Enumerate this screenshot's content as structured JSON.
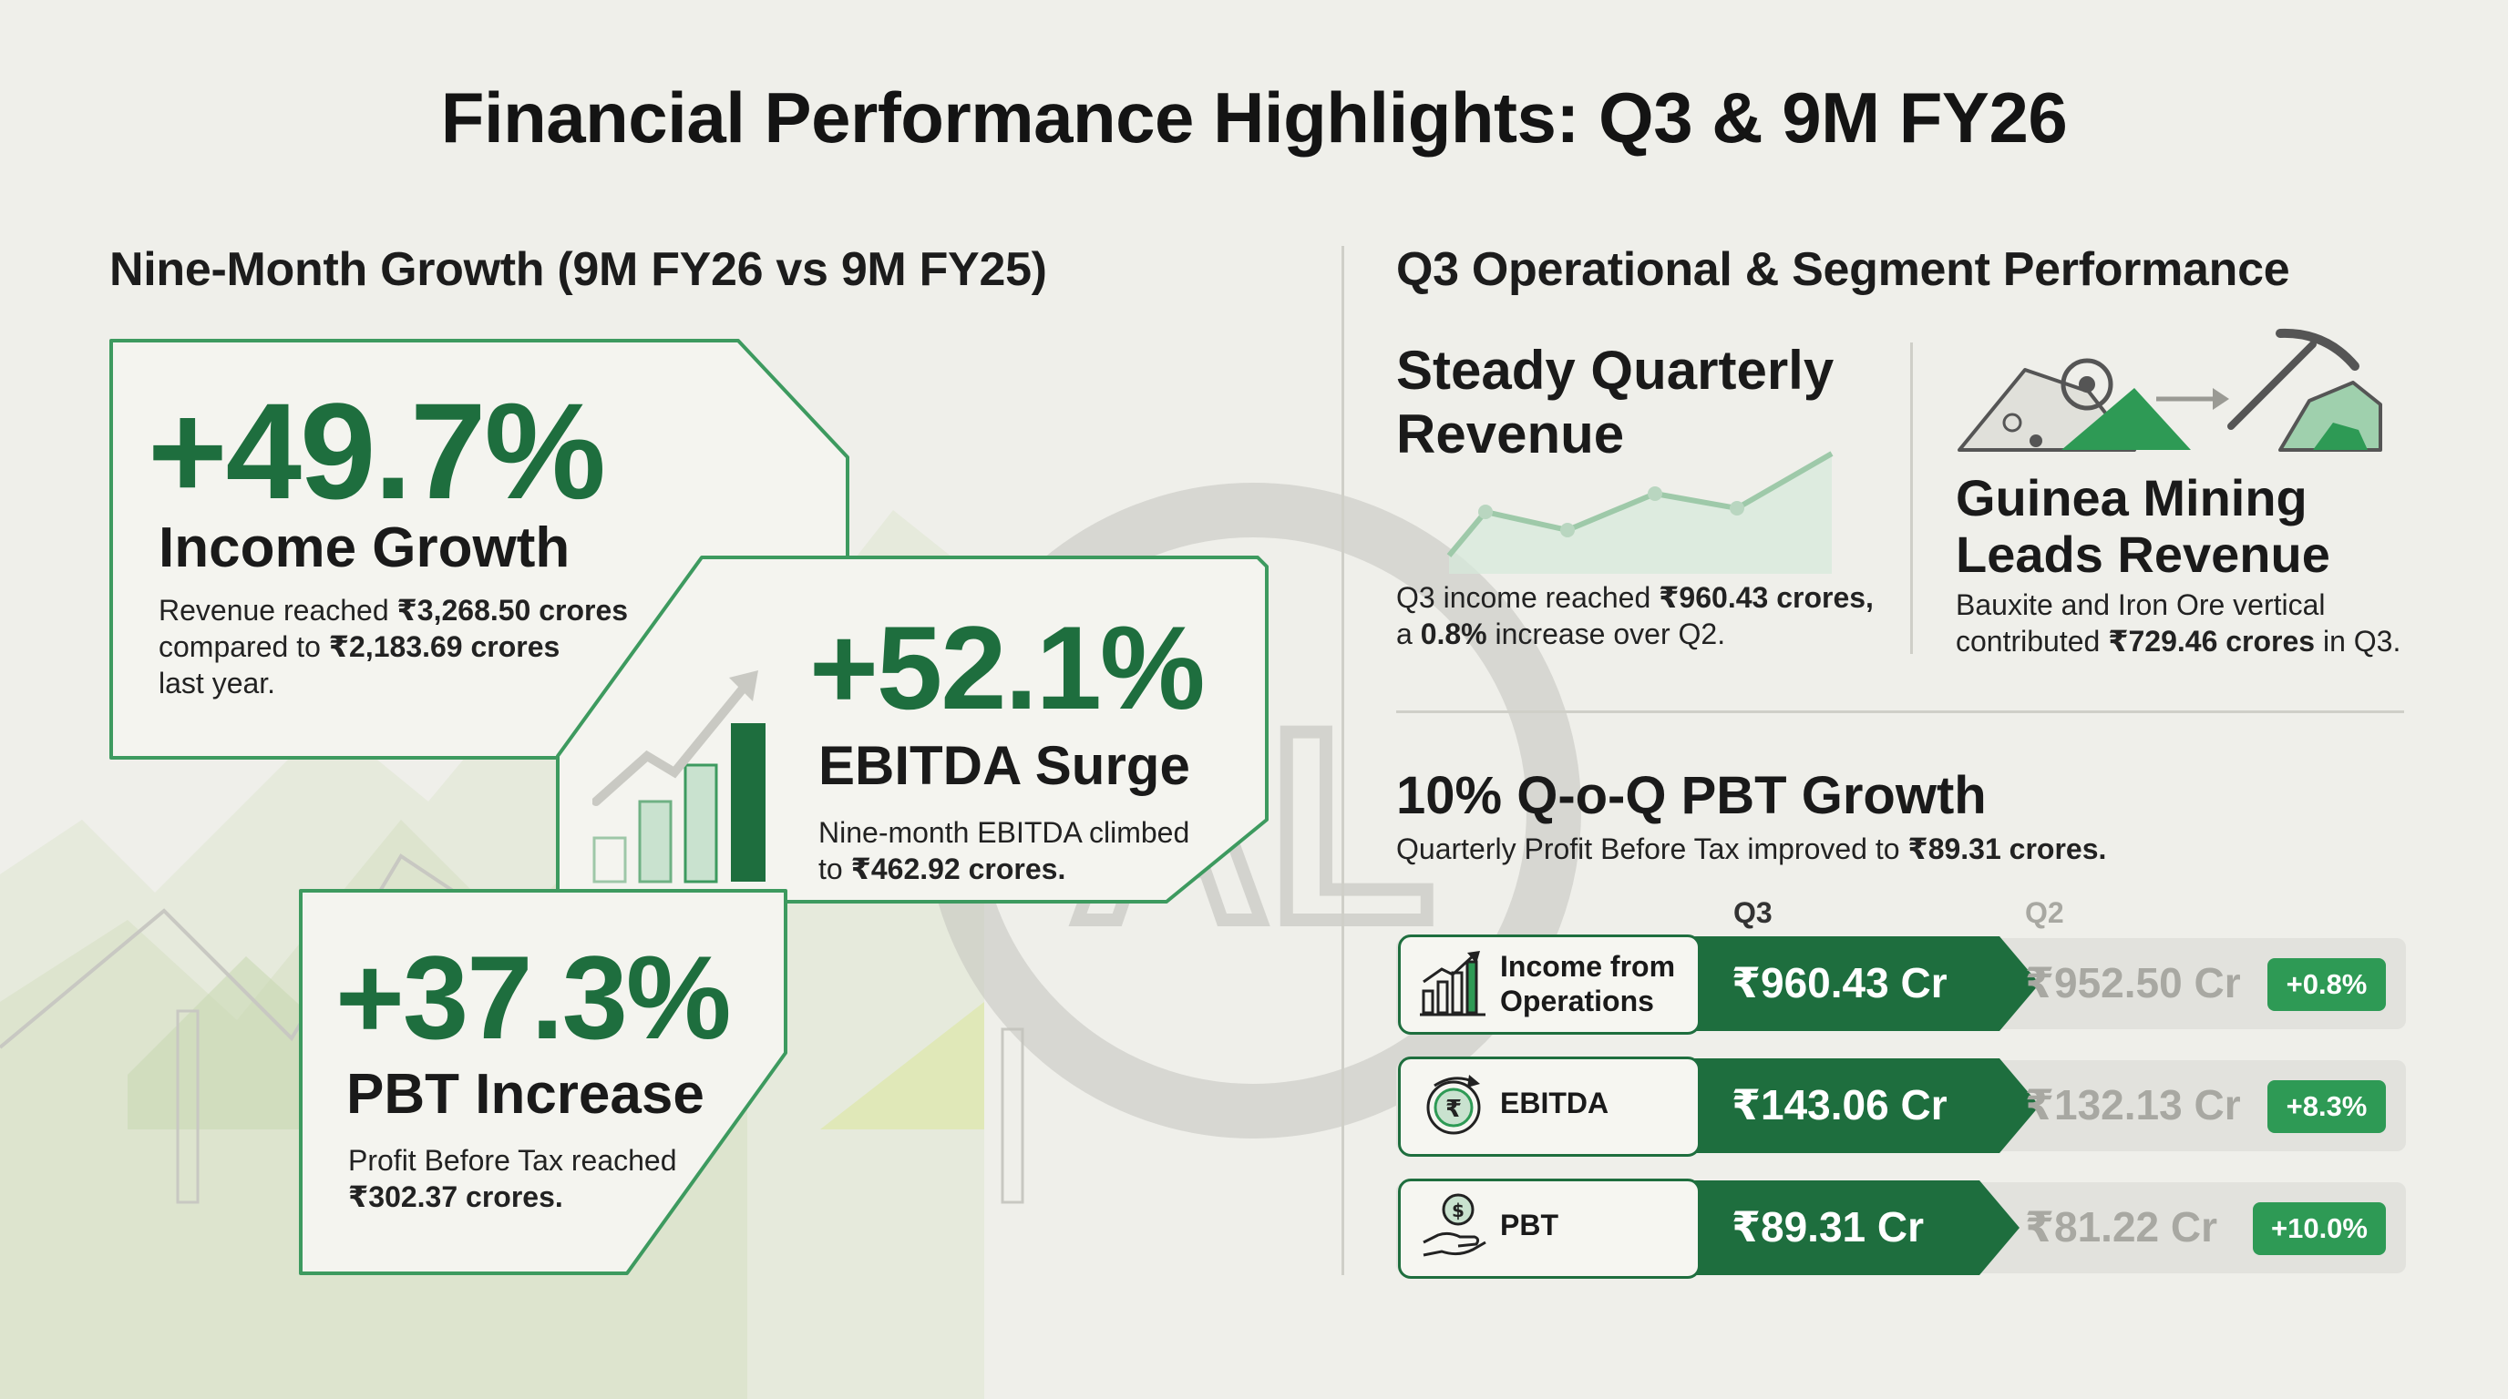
{
  "title": "Financial Performance Highlights: Q3 & 9M FY26",
  "left": {
    "heading": "Nine-Month Growth (9M FY26 vs 9M FY25)",
    "income": {
      "value": "+49.7%",
      "label": "Income Growth",
      "d1": "Revenue reached ",
      "d1b": "₹3,268.50 crores",
      "d2": "compared to ",
      "d2b": "₹2,183.69 crores",
      "d3": "last year."
    },
    "ebitda": {
      "value": "+52.1%",
      "label": "EBITDA Surge",
      "d1": "Nine-month EBITDA climbed",
      "d2": "to ",
      "d2b": "₹462.92 crores."
    },
    "pbt": {
      "value": "+37.3%",
      "label": "PBT Increase",
      "d1": "Profit Before Tax reached",
      "d1b": "₹302.37 crores."
    }
  },
  "right": {
    "heading": "Q3 Operational & Segment Performance",
    "steady": {
      "title1": "Steady Quarterly",
      "title2": "Revenue",
      "d1": "Q3 income reached ",
      "d1b": "₹960.43 crores,",
      "d2": "a ",
      "d2b": "0.8%",
      "d2c": " increase over Q2."
    },
    "guinea": {
      "title1": "Guinea Mining",
      "title2": "Leads Revenue",
      "d1": "Bauxite and Iron Ore vertical",
      "d2": "contributed ",
      "d2b": "₹729.46 crores",
      "d2c": " in Q3."
    },
    "pbt_growth": {
      "title": "10% Q-o-Q PBT Growth",
      "d1": "Quarterly Profit Before Tax improved to ",
      "d1b": "₹89.31 crores."
    },
    "table": {
      "col_q3": "Q3",
      "col_q2": "Q2",
      "rows": [
        {
          "label1": "Income from",
          "label2": "Operations",
          "q3": "₹960.43 Cr",
          "q2": "₹952.50 Cr",
          "change": "+0.8%"
        },
        {
          "label1": "EBITDA",
          "label2": "",
          "q3": "₹143.06 Cr",
          "q2": "₹132.13 Cr",
          "change": "+8.3%"
        },
        {
          "label1": "PBT",
          "label2": "",
          "q3": "₹89.31 Cr",
          "q2": "₹81.22 Cr",
          "change": "+10.0%"
        }
      ]
    }
  },
  "colors": {
    "dark_green": "#1e6e3e",
    "accent_green": "#2e9a55",
    "grey_value": "#a8a8a2"
  }
}
